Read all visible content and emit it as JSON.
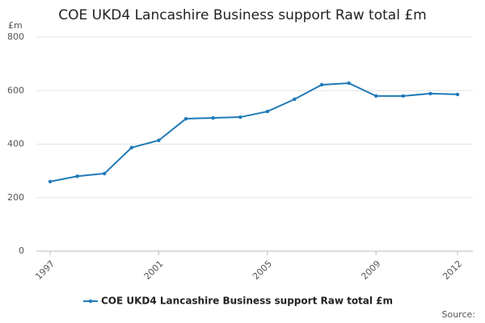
{
  "chart_data": {
    "type": "line",
    "title": "COE UKD4 Lancashire Business support Raw total £m",
    "y_unit": "£m",
    "source": "Source:",
    "x": [
      1997,
      1998,
      1999,
      2000,
      2001,
      2002,
      2003,
      2004,
      2005,
      2006,
      2007,
      2008,
      2009,
      2010,
      2011,
      2012
    ],
    "series": [
      {
        "name": "COE UKD4 Lancashire Business support Raw total £m",
        "color": "#1f7ab8",
        "values": [
          260,
          280,
          290,
          387,
          414,
          495,
          498,
          501,
          522,
          568,
          622,
          628,
          580,
          580,
          589,
          586
        ]
      }
    ],
    "xlim": [
      1997,
      2012
    ],
    "xticks": [
      1997,
      2001,
      2005,
      2009,
      2012
    ],
    "ylim": [
      0,
      800
    ],
    "yticks": [
      0,
      200,
      400,
      600,
      800
    ],
    "grid": true
  }
}
